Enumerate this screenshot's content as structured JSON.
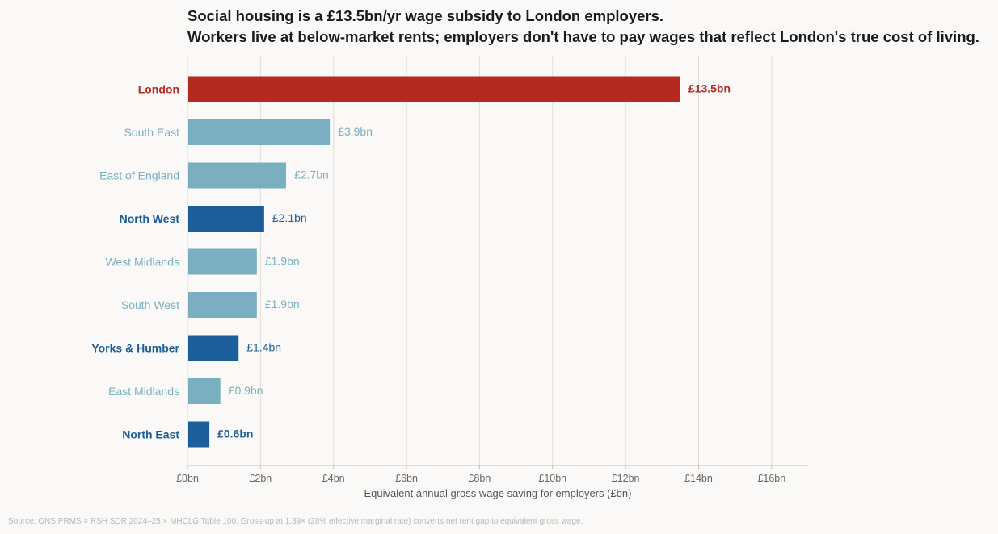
{
  "title_line1": "Social housing is a £13.5bn/yr wage subsidy to London employers.",
  "title_line2": "Workers live at below-market rents; employers don't have to pay wages that reflect London's true cost of living.",
  "source": "Source: ONS PRMS × RSH SDR 2024–25 × MHCLG Table 100. Gross-up at 1.39× (28% effective marginal rate) converts net rent gap to equivalent gross wage.",
  "chart_data": {
    "type": "bar",
    "orientation": "horizontal",
    "xlabel": "Equivalent annual gross wage saving for employers (£bn)",
    "xlim": [
      0,
      17
    ],
    "xticks": [
      0,
      2,
      4,
      6,
      8,
      10,
      12,
      14,
      16
    ],
    "xtick_labels": [
      "£0bn",
      "£2bn",
      "£4bn",
      "£6bn",
      "£8bn",
      "£10bn",
      "£12bn",
      "£14bn",
      "£16bn"
    ],
    "grid": "vertical",
    "colors": {
      "highlight": "#b52a20",
      "emphasis": "#1b5e99",
      "muted": "#7aafc2"
    },
    "categories": [
      "London",
      "South East",
      "East of England",
      "North West",
      "West Midlands",
      "South West",
      "Yorks & Humber",
      "East Midlands",
      "North East"
    ],
    "values": [
      13.5,
      3.9,
      2.7,
      2.1,
      1.9,
      1.9,
      1.4,
      0.9,
      0.6
    ],
    "value_labels": [
      "£13.5bn",
      "£3.9bn",
      "£2.7bn",
      "£2.1bn",
      "£1.9bn",
      "£1.9bn",
      "£1.4bn",
      "£0.9bn",
      "£0.6bn"
    ],
    "styles": [
      "highlight",
      "muted",
      "muted",
      "emphasis",
      "muted",
      "muted",
      "emphasis",
      "muted",
      "emphasis"
    ],
    "bold_labels": [
      true,
      false,
      false,
      true,
      false,
      false,
      true,
      false,
      true
    ]
  }
}
